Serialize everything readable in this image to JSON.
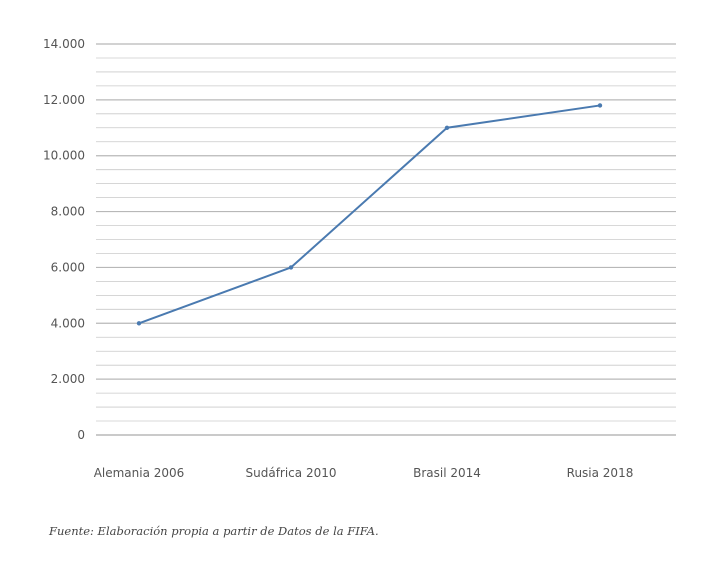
{
  "chart_data": {
    "type": "line",
    "categories": [
      "Alemania 2006",
      "Sudáfrica 2010",
      "Brasil 2014",
      "Rusia 2018"
    ],
    "series": [
      {
        "values": [
          4000,
          6000,
          11000,
          11800
        ],
        "color": "#4a7ab0"
      }
    ],
    "yticks": [
      "0",
      "2.000",
      "4.000",
      "6.000",
      "8.000",
      "10.000",
      "12.000",
      "14.000"
    ],
    "ylim": [
      0,
      14000
    ],
    "grid": true,
    "gridline_color": "#b8b8b8",
    "legend": "none"
  },
  "source_note": "Fuente: Elaboración propia a partir de Datos de la FIFA."
}
